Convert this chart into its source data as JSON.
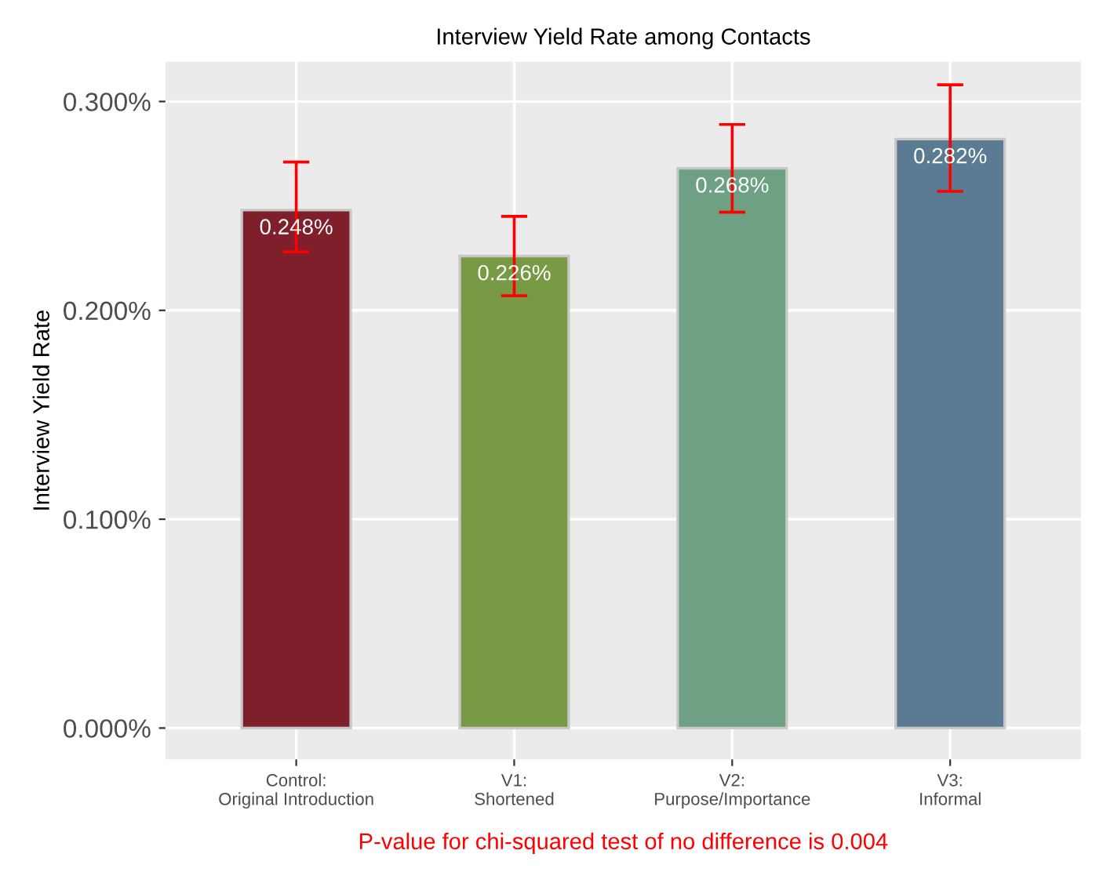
{
  "chart_data": {
    "type": "bar",
    "title": "Interview Yield Rate among Contacts",
    "ylabel": "Interview Yield Rate",
    "categories": [
      "Control:\nOriginal Introduction",
      "V1:\nShortened",
      "V2:\nPurpose/Importance",
      "V3:\nInformal"
    ],
    "values": [
      0.248,
      0.226,
      0.268,
      0.282
    ],
    "colors": [
      "#7f1f2c",
      "#789a45",
      "#6ea084",
      "#5a7b92"
    ],
    "errors": [
      [
        0.228,
        0.271
      ],
      [
        0.207,
        0.245
      ],
      [
        0.247,
        0.289
      ],
      [
        0.257,
        0.308
      ]
    ],
    "value_labels": [
      "0.248%",
      "0.226%",
      "0.268%",
      "0.282%"
    ],
    "ylim": [
      -0.015,
      0.319
    ],
    "yticks": [
      {
        "value": 0,
        "label": "0.000%"
      },
      {
        "value": 0.1,
        "label": "0.100%"
      },
      {
        "value": 0.2,
        "label": "0.200%"
      },
      {
        "value": 0.3,
        "label": "0.300%"
      }
    ],
    "grid": true,
    "annotations": [
      "P-value for chi-squared test of no difference is 0.004"
    ]
  }
}
